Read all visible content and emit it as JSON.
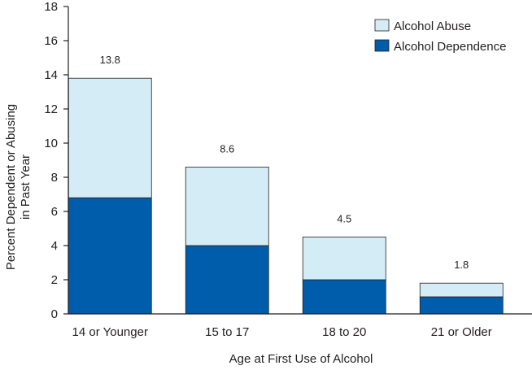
{
  "chart_data": {
    "type": "bar",
    "stacked": true,
    "title": "",
    "xlabel": "Age at First Use of Alcohol",
    "ylabel_lines": [
      "Percent Dependent or Abusing",
      "in Past Year"
    ],
    "ylim": [
      0,
      18
    ],
    "yticks": [
      0,
      2,
      4,
      6,
      8,
      10,
      12,
      14,
      16,
      18
    ],
    "categories": [
      "14 or Younger",
      "15 to 17",
      "18 to 20",
      "21 or Older"
    ],
    "series": [
      {
        "name": "Alcohol Dependence",
        "color": "#005dab",
        "values": [
          6.8,
          4.0,
          2.0,
          1.0
        ]
      },
      {
        "name": "Alcohol Abuse",
        "color": "#d4ecf6",
        "values": [
          7.0,
          4.6,
          2.5,
          0.8
        ]
      }
    ],
    "totals": [
      "13.8",
      "8.6",
      "4.5",
      "1.8"
    ],
    "legend": {
      "placement": "top-right",
      "order": [
        "Alcohol Abuse",
        "Alcohol Dependence"
      ]
    },
    "grid": false
  }
}
